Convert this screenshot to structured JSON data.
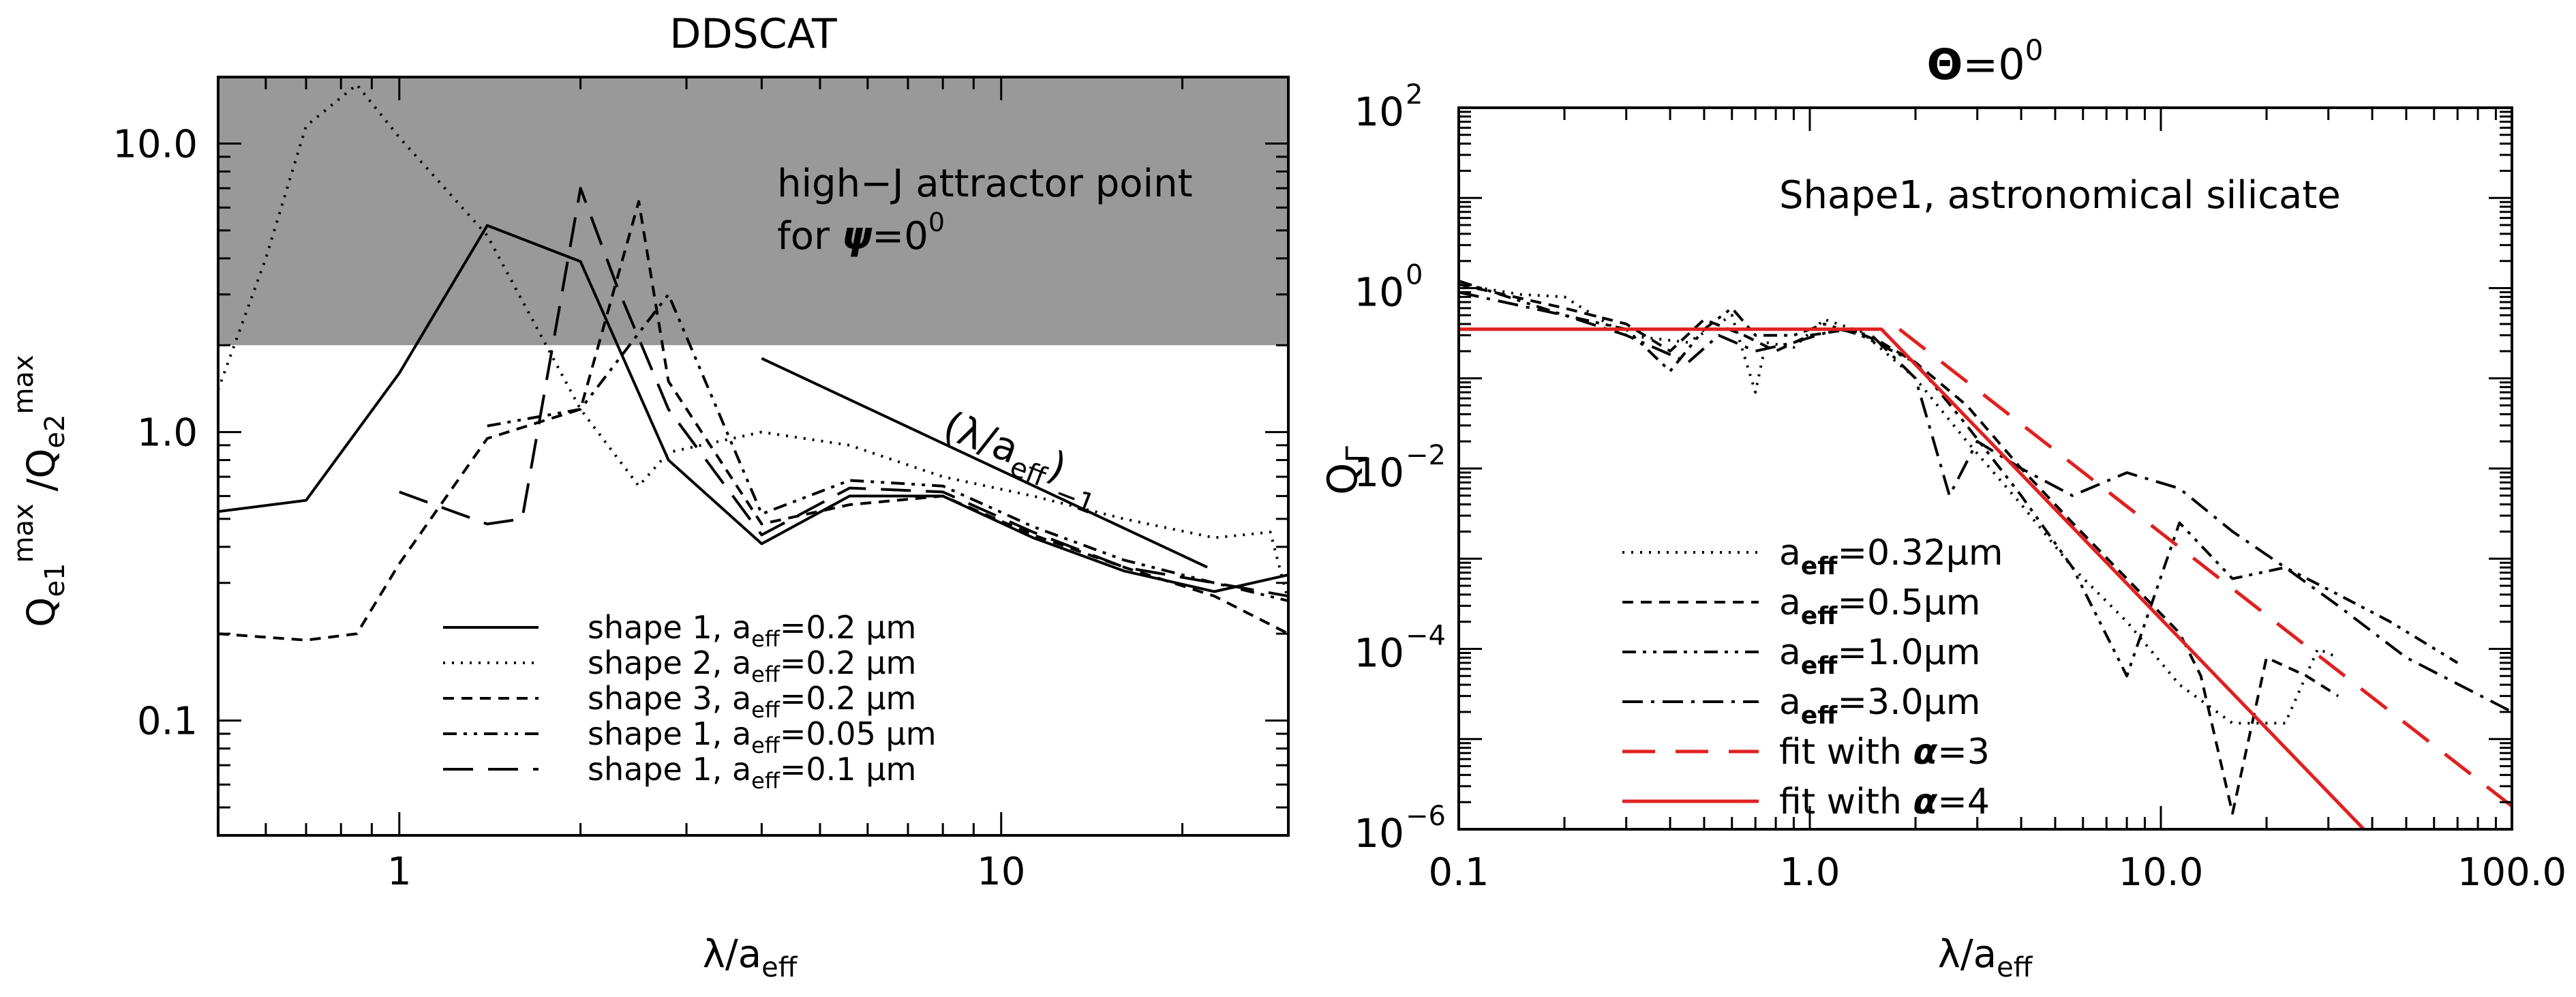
{
  "chart_data": [
    {
      "type": "line",
      "panel": "left",
      "title": "DDSCAT",
      "xlabel": "λ/a_eff",
      "ylabel": "Q_e1^max / Q_e2^max",
      "xscale": "log",
      "yscale": "log",
      "xlim": [
        0.5,
        30
      ],
      "ylim": [
        0.04,
        17
      ],
      "xticks": [
        {
          "v": 1,
          "label": "1"
        },
        {
          "v": 10,
          "label": "10"
        }
      ],
      "yticks": [
        {
          "v": 0.1,
          "label": "0.1"
        },
        {
          "v": 1,
          "label": "1.0"
        },
        {
          "v": 10,
          "label": "10.0"
        }
      ],
      "shaded_region": {
        "y_from": 2.0,
        "y_to": 17,
        "color": "#999999"
      },
      "annotations": [
        {
          "text_line1": "high−J attractor point",
          "text_line2_pre": "for ",
          "psi": "ψ",
          "text_line2_post": "=0",
          "sup": "0"
        },
        {
          "reference_line": {
            "x": [
              4.0,
              22.0
            ],
            "y": [
              1.8,
              0.34
            ]
          },
          "label_open": "(λ/a",
          "label_sub": "eff",
          "label_close": ")",
          "label_sup": "−1"
        }
      ],
      "legend_position": "bottom-center",
      "series": [
        {
          "name_pre": "shape 1, a",
          "name_sub": "eff",
          "name_post": "=0.2 μm",
          "dash": "solid",
          "color": "#000000",
          "x": [
            0.5,
            0.7,
            1.0,
            1.4,
            2.0,
            2.8,
            4.0,
            5.6,
            8.0,
            11.3,
            16.0,
            22.6,
            30.0
          ],
          "y": [
            0.53,
            0.58,
            1.6,
            5.2,
            3.9,
            0.8,
            0.41,
            0.6,
            0.6,
            0.43,
            0.33,
            0.28,
            0.32
          ]
        },
        {
          "name_pre": "shape 2, a",
          "name_sub": "eff",
          "name_post": "=0.2 μm",
          "dash": "dotted",
          "color": "#000000",
          "x": [
            0.5,
            0.6,
            0.7,
            0.85,
            1.0,
            1.4,
            2.0,
            2.5,
            2.8,
            4.0,
            5.6,
            8.0,
            11.3,
            16.0,
            22.6,
            28.0,
            30.0
          ],
          "y": [
            1.4,
            4.0,
            11.5,
            16.0,
            10.5,
            4.8,
            1.2,
            0.65,
            0.85,
            1.0,
            0.9,
            0.7,
            0.6,
            0.5,
            0.43,
            0.45,
            0.26
          ]
        },
        {
          "name_pre": "shape 3, a",
          "name_sub": "eff",
          "name_post": "=0.2 μm",
          "dash": "dashed",
          "color": "#000000",
          "x": [
            0.5,
            0.7,
            0.85,
            1.0,
            1.4,
            2.0,
            2.5,
            2.8,
            4.0,
            5.6,
            8.0,
            11.3,
            16.0,
            22.6,
            30.0
          ],
          "y": [
            0.2,
            0.19,
            0.2,
            0.35,
            0.95,
            1.2,
            6.3,
            1.5,
            0.48,
            0.56,
            0.6,
            0.44,
            0.34,
            0.27,
            0.2
          ]
        },
        {
          "name_pre": "shape 1, a",
          "name_sub": "eff",
          "name_post": "=0.05 μm",
          "dash": "dashdotdot",
          "color": "#000000",
          "x": [
            1.4,
            2.0,
            2.8,
            4.0,
            5.6,
            8.0,
            11.3,
            16.0,
            22.6,
            30.0
          ],
          "y": [
            1.05,
            1.2,
            3.0,
            0.52,
            0.68,
            0.65,
            0.47,
            0.36,
            0.3,
            0.26
          ]
        },
        {
          "name_pre": "shape 1, a",
          "name_sub": "eff",
          "name_post": "=0.1 μm",
          "dash": "longdash",
          "color": "#000000",
          "x": [
            1.0,
            1.4,
            1.6,
            2.0,
            2.3,
            2.8,
            4.0,
            5.6,
            8.0,
            11.3,
            16.0,
            22.6,
            30.0
          ],
          "y": [
            0.62,
            0.48,
            0.5,
            7.0,
            3.2,
            1.2,
            0.44,
            0.64,
            0.62,
            0.45,
            0.34,
            0.3,
            0.27
          ]
        }
      ]
    },
    {
      "type": "line",
      "panel": "right",
      "title_symbol": "Θ",
      "title_rest": "=0",
      "title_sup": "0",
      "xlabel": "λ/a_eff",
      "ylabel": "Q_Γ",
      "xscale": "log",
      "yscale": "log",
      "xlim": [
        0.1,
        100
      ],
      "ylim": [
        1e-06,
        100
      ],
      "xticks": [
        {
          "v": 0.1,
          "label": "0.1"
        },
        {
          "v": 1,
          "label": "1.0"
        },
        {
          "v": 10,
          "label": "10.0"
        },
        {
          "v": 100,
          "label": "100.0"
        }
      ],
      "yticks": [
        {
          "v": 1e-06,
          "exp": "−6"
        },
        {
          "v": 0.0001,
          "exp": "−4"
        },
        {
          "v": 0.01,
          "exp": "−2"
        },
        {
          "v": 1,
          "exp": "0"
        },
        {
          "v": 100,
          "exp": "2"
        }
      ],
      "ytick_base": "10",
      "annotation": "Shape1, astronomical silicate",
      "legend_position": "bottom-center",
      "series": [
        {
          "name_pre": "a",
          "name_sub": "eff",
          "name_post": "=0.32μm",
          "dash": "dotted",
          "color": "#000000",
          "x": [
            0.1,
            0.15,
            0.2,
            0.3,
            0.45,
            0.6,
            0.7,
            0.75,
            0.9,
            1.1,
            1.4,
            2.0,
            2.8,
            4.0,
            5.6,
            8.0,
            11.3,
            16.0,
            22.6,
            28.0,
            32.0
          ],
          "y": [
            1.1,
            0.85,
            0.8,
            0.3,
            0.25,
            0.5,
            0.07,
            0.25,
            0.22,
            0.45,
            0.33,
            0.1,
            0.02,
            0.004,
            0.0008,
            0.0002,
            4e-05,
            1.5e-05,
            1.5e-05,
            0.0001,
            8e-05
          ]
        },
        {
          "name_pre": "a",
          "name_sub": "eff",
          "name_post": "=0.5μm",
          "dash": "dashed",
          "color": "#000000",
          "x": [
            0.1,
            0.2,
            0.3,
            0.4,
            0.5,
            0.65,
            0.8,
            1.0,
            1.3,
            1.6,
            2.0,
            2.8,
            4.0,
            5.6,
            8.0,
            11.3,
            13.0,
            16.0,
            20.0,
            26.0,
            32.0
          ],
          "y": [
            1.1,
            0.6,
            0.4,
            0.2,
            0.45,
            0.3,
            0.2,
            0.3,
            0.35,
            0.25,
            0.15,
            0.05,
            0.01,
            0.0025,
            0.0006,
            0.00015,
            5e-05,
            1.5e-06,
            8e-05,
            5e-05,
            3e-05
          ]
        },
        {
          "name_pre": "a",
          "name_sub": "eff",
          "name_post": "=1.0μm",
          "dash": "dashdotdot",
          "color": "#000000",
          "x": [
            0.1,
            0.2,
            0.3,
            0.4,
            0.5,
            0.6,
            0.7,
            0.9,
            1.1,
            1.4,
            2.0,
            2.8,
            4.0,
            5.6,
            8.0,
            11.3,
            16.0,
            22.6,
            32.0,
            45.0,
            70.0
          ],
          "y": [
            1.2,
            0.5,
            0.35,
            0.12,
            0.35,
            0.6,
            0.3,
            0.3,
            0.4,
            0.3,
            0.15,
            0.03,
            0.005,
            0.0008,
            5e-05,
            0.0025,
            0.0006,
            0.0008,
            0.0004,
            0.0002,
            7e-05
          ]
        },
        {
          "name_pre": "a",
          "name_sub": "eff",
          "name_post": "=3.0μm",
          "dash": "dashdot",
          "color": "#000000",
          "x": [
            0.1,
            0.2,
            0.3,
            0.45,
            0.55,
            0.7,
            0.9,
            1.2,
            1.5,
            2.0,
            2.5,
            3.0,
            4.0,
            5.6,
            8.0,
            11.3,
            16.0,
            22.6,
            32.0,
            50.0,
            100.0
          ],
          "y": [
            0.9,
            0.5,
            0.3,
            0.15,
            0.3,
            0.2,
            0.25,
            0.35,
            0.3,
            0.1,
            0.005,
            0.02,
            0.01,
            0.005,
            0.009,
            0.006,
            0.002,
            0.0008,
            0.0003,
            8e-05,
            2e-05
          ]
        },
        {
          "name_pre": "fit with ",
          "name_alpha": "α",
          "name_post": "=3",
          "dash": "redlongdash",
          "color": "#e02020",
          "x": [
            1.8,
            100.0
          ],
          "y": [
            0.35,
            1.8e-06
          ]
        },
        {
          "name_pre": "fit with ",
          "name_alpha": "α",
          "name_post": "=4",
          "dash": "solid",
          "color": "#e02020",
          "x": [
            0.1,
            1.6,
            40.0
          ],
          "y": [
            0.35,
            0.35,
            8e-07
          ]
        }
      ]
    }
  ]
}
